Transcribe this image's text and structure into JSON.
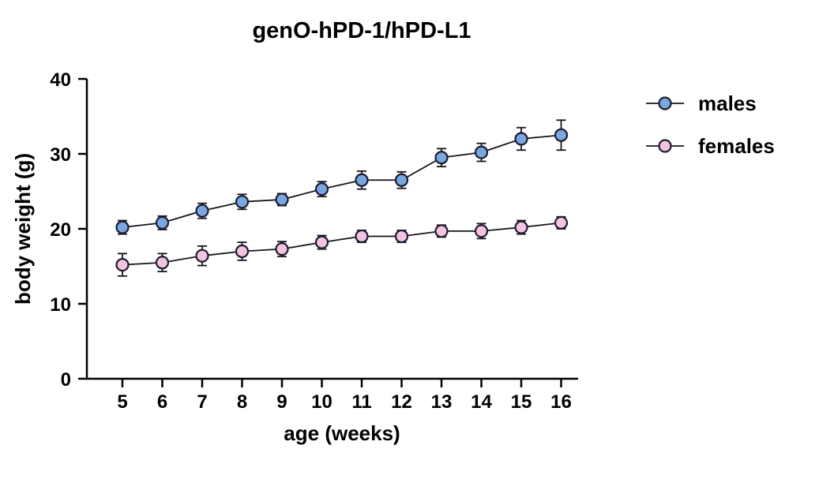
{
  "chart_data": {
    "type": "line",
    "title": "genO-hPD-1/hPD-L1",
    "xlabel": "age (weeks)",
    "ylabel": "body weight (g)",
    "x": [
      5,
      6,
      7,
      8,
      9,
      10,
      11,
      12,
      13,
      14,
      15,
      16
    ],
    "xlim": [
      4.2,
      16.8
    ],
    "ylim": [
      0,
      40
    ],
    "yticks": [
      0,
      10,
      20,
      30,
      40
    ],
    "grid": false,
    "legend_position": "right",
    "series": [
      {
        "name": "males",
        "color": "#7BA7E1",
        "values": [
          20.2,
          20.8,
          22.4,
          23.6,
          23.9,
          25.3,
          26.5,
          26.5,
          29.5,
          30.2,
          32.0,
          32.5
        ],
        "errors": [
          0.9,
          0.9,
          1.0,
          1.0,
          0.8,
          1.0,
          1.2,
          1.1,
          1.2,
          1.2,
          1.5,
          2.0
        ]
      },
      {
        "name": "females",
        "color": "#F5C3DF",
        "values": [
          15.2,
          15.5,
          16.4,
          17.0,
          17.3,
          18.2,
          19.0,
          19.0,
          19.7,
          19.7,
          20.2,
          20.8
        ],
        "errors": [
          1.5,
          1.2,
          1.3,
          1.2,
          1.0,
          0.9,
          0.8,
          0.8,
          0.8,
          1.0,
          0.9,
          0.8
        ]
      }
    ],
    "marker_outline": "#1C1C33",
    "line_color": "#15151F",
    "axis_color": "#000000",
    "background": "#FFFFFF"
  }
}
